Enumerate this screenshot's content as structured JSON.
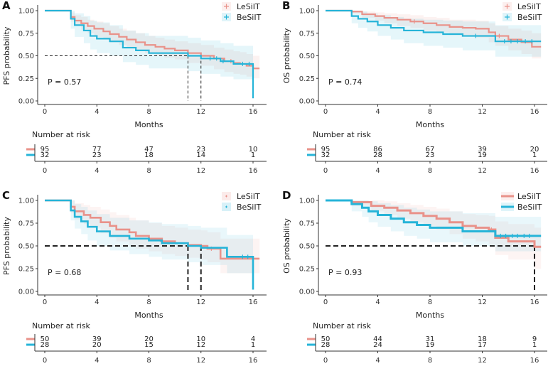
{
  "colors": {
    "lesiit": "#E9928A",
    "besiit": "#26B4D8"
  },
  "chart_data": [
    {
      "panel": "A",
      "type": "line",
      "subtype": "kaplan-meier",
      "ylabel": "PFS probability",
      "xlabel": "Months",
      "xlim": [
        0,
        16.5
      ],
      "ylim": [
        0,
        1
      ],
      "xticks": [
        "0",
        "4",
        "8",
        "12",
        "16"
      ],
      "yticks": [
        "0.00",
        "0.25",
        "0.50",
        "0.75",
        "1.00"
      ],
      "pvalue": "P = 0.57",
      "legend": [
        "LeSiIT",
        "BeSiIT"
      ],
      "series": [
        {
          "name": "LeSiIT",
          "x": [
            0,
            2,
            2.3,
            2.8,
            3.3,
            3.8,
            4.5,
            5,
            5.7,
            6.3,
            7,
            7.7,
            8.5,
            9.2,
            10,
            11,
            12,
            13,
            13.8,
            14.5,
            15,
            15.5,
            16,
            16.5
          ],
          "y": [
            1,
            0.93,
            0.89,
            0.86,
            0.83,
            0.8,
            0.77,
            0.74,
            0.71,
            0.68,
            0.65,
            0.62,
            0.6,
            0.58,
            0.56,
            0.53,
            0.5,
            0.47,
            0.44,
            0.42,
            0.41,
            0.39,
            0.36,
            0.36
          ],
          "ci_lower": [
            1,
            0.88,
            0.83,
            0.79,
            0.75,
            0.71,
            0.68,
            0.65,
            0.62,
            0.59,
            0.56,
            0.53,
            0.5,
            0.48,
            0.46,
            0.42,
            0.39,
            0.35,
            0.32,
            0.3,
            0.29,
            0.27,
            0.25,
            0.25
          ],
          "ci_upper": [
            1,
            0.98,
            0.95,
            0.93,
            0.9,
            0.88,
            0.86,
            0.83,
            0.8,
            0.78,
            0.75,
            0.72,
            0.7,
            0.68,
            0.66,
            0.64,
            0.62,
            0.59,
            0.57,
            0.55,
            0.54,
            0.52,
            0.5,
            0.5
          ],
          "censor_x": [
            14.3
          ],
          "median": 12
        },
        {
          "name": "BeSiIT",
          "x": [
            0,
            2,
            2.3,
            3,
            3.5,
            4,
            5,
            6,
            7,
            8,
            9.5,
            11,
            12,
            13.5,
            14.5,
            15,
            16
          ],
          "y": [
            1,
            0.91,
            0.84,
            0.78,
            0.72,
            0.69,
            0.66,
            0.59,
            0.56,
            0.53,
            0.53,
            0.5,
            0.47,
            0.44,
            0.41,
            0.41,
            0.03
          ],
          "ci_lower": [
            1,
            0.8,
            0.71,
            0.64,
            0.57,
            0.53,
            0.5,
            0.43,
            0.4,
            0.36,
            0.36,
            0.33,
            0.3,
            0.27,
            0.24,
            0.24,
            0.0
          ],
          "ci_upper": [
            1,
            1.0,
            0.97,
            0.94,
            0.89,
            0.87,
            0.84,
            0.78,
            0.75,
            0.72,
            0.72,
            0.7,
            0.67,
            0.64,
            0.61,
            0.61,
            0.55
          ],
          "censor_x": [
            12.7,
            13.2,
            13.7,
            15.2,
            15.7
          ],
          "median": 11
        }
      ],
      "risk_table": {
        "title": "Number at risk",
        "times": [
          "0",
          "4",
          "8",
          "12",
          "16"
        ],
        "rows": [
          {
            "name": "LeSiIT",
            "counts": [
              "95",
              "77",
              "47",
              "23",
              "10"
            ]
          },
          {
            "name": "BeSiIT",
            "counts": [
              "32",
              "23",
              "18",
              "14",
              "1"
            ]
          }
        ]
      }
    },
    {
      "panel": "B",
      "type": "line",
      "subtype": "kaplan-meier",
      "ylabel": "OS probability",
      "xlabel": "Months",
      "xlim": [
        0,
        16.5
      ],
      "ylim": [
        0,
        1
      ],
      "xticks": [
        "0",
        "4",
        "8",
        "12",
        "16"
      ],
      "yticks": [
        "0.00",
        "0.25",
        "0.50",
        "0.75",
        "1.00"
      ],
      "pvalue": "P = 0.74",
      "legend": [
        "LeSiIT",
        "BeSiIT"
      ],
      "series": [
        {
          "name": "LeSiIT",
          "x": [
            0,
            2,
            2.8,
            3.8,
            4.5,
            5.5,
            6.5,
            7.5,
            8.5,
            9.5,
            10.5,
            11.5,
            12.5,
            13,
            14,
            15,
            15.8,
            16.5
          ],
          "y": [
            1,
            0.99,
            0.96,
            0.94,
            0.92,
            0.9,
            0.88,
            0.86,
            0.84,
            0.82,
            0.81,
            0.8,
            0.76,
            0.72,
            0.68,
            0.65,
            0.6,
            0.6
          ],
          "ci_lower": [
            1,
            0.97,
            0.92,
            0.89,
            0.86,
            0.83,
            0.81,
            0.78,
            0.76,
            0.73,
            0.72,
            0.7,
            0.65,
            0.61,
            0.56,
            0.52,
            0.47,
            0.47
          ],
          "ci_upper": [
            1,
            1.0,
            0.99,
            0.98,
            0.97,
            0.96,
            0.95,
            0.93,
            0.92,
            0.9,
            0.9,
            0.89,
            0.86,
            0.83,
            0.8,
            0.78,
            0.75,
            0.75
          ],
          "censor_x": [
            6.8,
            13.3
          ],
          "median": null
        },
        {
          "name": "BeSiIT",
          "x": [
            0,
            2,
            2.5,
            3.2,
            4,
            5,
            6,
            7.5,
            9,
            10.5,
            13,
            16.5
          ],
          "y": [
            1,
            0.94,
            0.91,
            0.88,
            0.84,
            0.81,
            0.78,
            0.76,
            0.74,
            0.72,
            0.66,
            0.66
          ],
          "ci_lower": [
            1,
            0.86,
            0.81,
            0.77,
            0.72,
            0.68,
            0.64,
            0.61,
            0.59,
            0.56,
            0.49,
            0.49
          ],
          "ci_upper": [
            1,
            1.0,
            0.99,
            0.97,
            0.95,
            0.93,
            0.91,
            0.9,
            0.89,
            0.88,
            0.84,
            0.84
          ],
          "censor_x": [
            11.5,
            13.7,
            14.2,
            14.7,
            15.3,
            15.8
          ],
          "median": null
        }
      ],
      "risk_table": {
        "title": "Number at risk",
        "times": [
          "0",
          "4",
          "8",
          "12",
          "16"
        ],
        "rows": [
          {
            "name": "LeSiIT",
            "counts": [
              "95",
              "86",
              "67",
              "39",
              "20"
            ]
          },
          {
            "name": "BeSiIT",
            "counts": [
              "32",
              "28",
              "23",
              "19",
              "1"
            ]
          }
        ]
      }
    },
    {
      "panel": "C",
      "type": "line",
      "subtype": "kaplan-meier",
      "ylabel": "PFS probability",
      "xlabel": "Months",
      "xlim": [
        0,
        16.5
      ],
      "ylim": [
        0,
        1
      ],
      "xticks": [
        "0",
        "4",
        "8",
        "12",
        "16"
      ],
      "yticks": [
        "0.00",
        "0.25",
        "0.50",
        "0.75",
        "1.00"
      ],
      "pvalue": "P = 0.68",
      "legend": [
        "LeSiIT",
        "BeSiIT"
      ],
      "series": [
        {
          "name": "LeSiIT",
          "x": [
            0,
            2,
            2.3,
            3,
            3.5,
            4.3,
            5,
            5.5,
            6.5,
            7,
            8,
            9,
            10,
            11,
            12,
            12.5,
            13.5,
            16,
            16.5
          ],
          "y": [
            1,
            0.93,
            0.88,
            0.84,
            0.81,
            0.76,
            0.72,
            0.68,
            0.65,
            0.61,
            0.58,
            0.55,
            0.53,
            0.51,
            0.5,
            0.47,
            0.36,
            0.36,
            0.36
          ],
          "ci_lower": [
            1,
            0.86,
            0.79,
            0.74,
            0.7,
            0.64,
            0.59,
            0.55,
            0.51,
            0.47,
            0.44,
            0.41,
            0.39,
            0.37,
            0.35,
            0.32,
            0.2,
            0.2,
            0.2
          ],
          "ci_upper": [
            1,
            1.0,
            0.97,
            0.95,
            0.93,
            0.9,
            0.87,
            0.84,
            0.81,
            0.78,
            0.75,
            0.72,
            0.7,
            0.68,
            0.67,
            0.65,
            0.58,
            0.58,
            0.58
          ],
          "censor_x": [
            9,
            12.8
          ],
          "median": 12
        },
        {
          "name": "BeSiIT",
          "x": [
            0,
            2,
            2.3,
            2.8,
            3.3,
            4,
            5,
            6.5,
            8,
            9,
            11,
            12,
            14,
            16
          ],
          "y": [
            1,
            0.89,
            0.82,
            0.77,
            0.71,
            0.66,
            0.61,
            0.58,
            0.56,
            0.53,
            0.5,
            0.48,
            0.38,
            0.02
          ],
          "ci_lower": [
            1,
            0.78,
            0.69,
            0.63,
            0.56,
            0.5,
            0.45,
            0.41,
            0.38,
            0.35,
            0.32,
            0.29,
            0.2,
            0.0
          ],
          "ci_upper": [
            1,
            1.0,
            0.96,
            0.93,
            0.89,
            0.85,
            0.81,
            0.78,
            0.76,
            0.74,
            0.72,
            0.7,
            0.62,
            0.55
          ],
          "censor_x": [
            15.2,
            15.6
          ],
          "median": 11
        }
      ],
      "risk_table": {
        "title": "Number at risk",
        "times": [
          "0",
          "4",
          "8",
          "12",
          "16"
        ],
        "rows": [
          {
            "name": "LeSiIT",
            "counts": [
              "50",
              "39",
              "20",
              "10",
              "4"
            ]
          },
          {
            "name": "BeSiIT",
            "counts": [
              "28",
              "20",
              "15",
              "12",
              "1"
            ]
          }
        ]
      }
    },
    {
      "panel": "D",
      "type": "line",
      "subtype": "kaplan-meier",
      "ylabel": "OS probability",
      "xlabel": "Months",
      "xlim": [
        0,
        16.5
      ],
      "ylim": [
        0,
        1
      ],
      "xticks": [
        "0",
        "4",
        "8",
        "12",
        "16"
      ],
      "yticks": [
        "0.00",
        "0.25",
        "0.50",
        "0.75",
        "1.00"
      ],
      "pvalue": "P = 0.93",
      "legend": [
        "LeSiIT",
        "BeSiIT"
      ],
      "series": [
        {
          "name": "LeSiIT",
          "x": [
            0,
            2,
            3.5,
            4.5,
            5.5,
            6.5,
            7.5,
            8.5,
            9.5,
            10.5,
            11.5,
            12.5,
            13,
            14,
            16,
            16.5
          ],
          "y": [
            1,
            0.98,
            0.94,
            0.92,
            0.89,
            0.86,
            0.83,
            0.8,
            0.76,
            0.72,
            0.7,
            0.68,
            0.59,
            0.55,
            0.49,
            0.49
          ],
          "ci_lower": [
            1,
            0.94,
            0.88,
            0.84,
            0.8,
            0.76,
            0.72,
            0.68,
            0.63,
            0.58,
            0.55,
            0.52,
            0.4,
            0.35,
            0.25,
            0.25
          ],
          "ci_upper": [
            1,
            1.0,
            1.0,
            0.99,
            0.97,
            0.95,
            0.93,
            0.91,
            0.88,
            0.85,
            0.84,
            0.83,
            0.77,
            0.74,
            0.7,
            0.7
          ],
          "censor_x": [
            12.7
          ],
          "median": 16
        },
        {
          "name": "BeSiIT",
          "x": [
            0,
            2,
            2.8,
            3.3,
            4,
            5,
            6,
            7,
            8,
            10.5,
            13,
            16.5
          ],
          "y": [
            1,
            0.96,
            0.92,
            0.88,
            0.84,
            0.8,
            0.76,
            0.73,
            0.7,
            0.66,
            0.61,
            0.61
          ],
          "ci_lower": [
            1,
            0.88,
            0.82,
            0.76,
            0.71,
            0.66,
            0.61,
            0.58,
            0.54,
            0.5,
            0.44,
            0.44
          ],
          "ci_upper": [
            1,
            1.0,
            1.0,
            0.99,
            0.97,
            0.95,
            0.92,
            0.9,
            0.88,
            0.86,
            0.82,
            0.82
          ],
          "censor_x": [
            13.4,
            13.8,
            14.3,
            14.7,
            15.2,
            15.6
          ],
          "median": null
        }
      ],
      "risk_table": {
        "title": "Number at risk",
        "times": [
          "0",
          "4",
          "8",
          "12",
          "16"
        ],
        "rows": [
          {
            "name": "LeSiIT",
            "counts": [
              "50",
              "44",
              "31",
              "18",
              "9"
            ]
          },
          {
            "name": "BeSiIT",
            "counts": [
              "28",
              "24",
              "19",
              "17",
              "1"
            ]
          }
        ]
      }
    }
  ]
}
